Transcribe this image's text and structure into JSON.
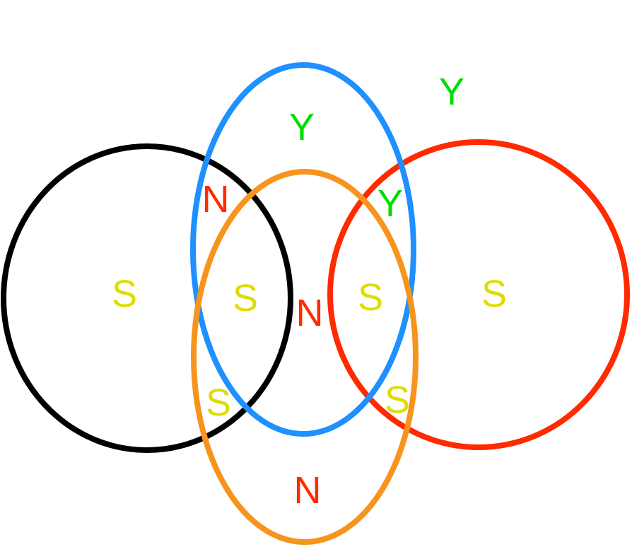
{
  "colors": {
    "black_circle": "#000000",
    "blue_ellipse": "#1e90ff",
    "orange_ellipse": "#f7941d",
    "red_circle": "#ff2a00",
    "label_S": "#dddd00",
    "label_N": "#ff2a00",
    "label_Y": "#00dd00"
  },
  "labels": {
    "outside_top_right": "Y",
    "blue_top": "Y",
    "blue_red_overlap": "Y",
    "black_blue_overlap": "N",
    "black_only": "S",
    "black_blue_orange_overlap": "S",
    "center": "N",
    "blue_orange_red_overlap": "S",
    "red_only": "S",
    "black_orange_overlap": "S",
    "orange_red_overlap": "S",
    "orange_bottom": "N"
  }
}
